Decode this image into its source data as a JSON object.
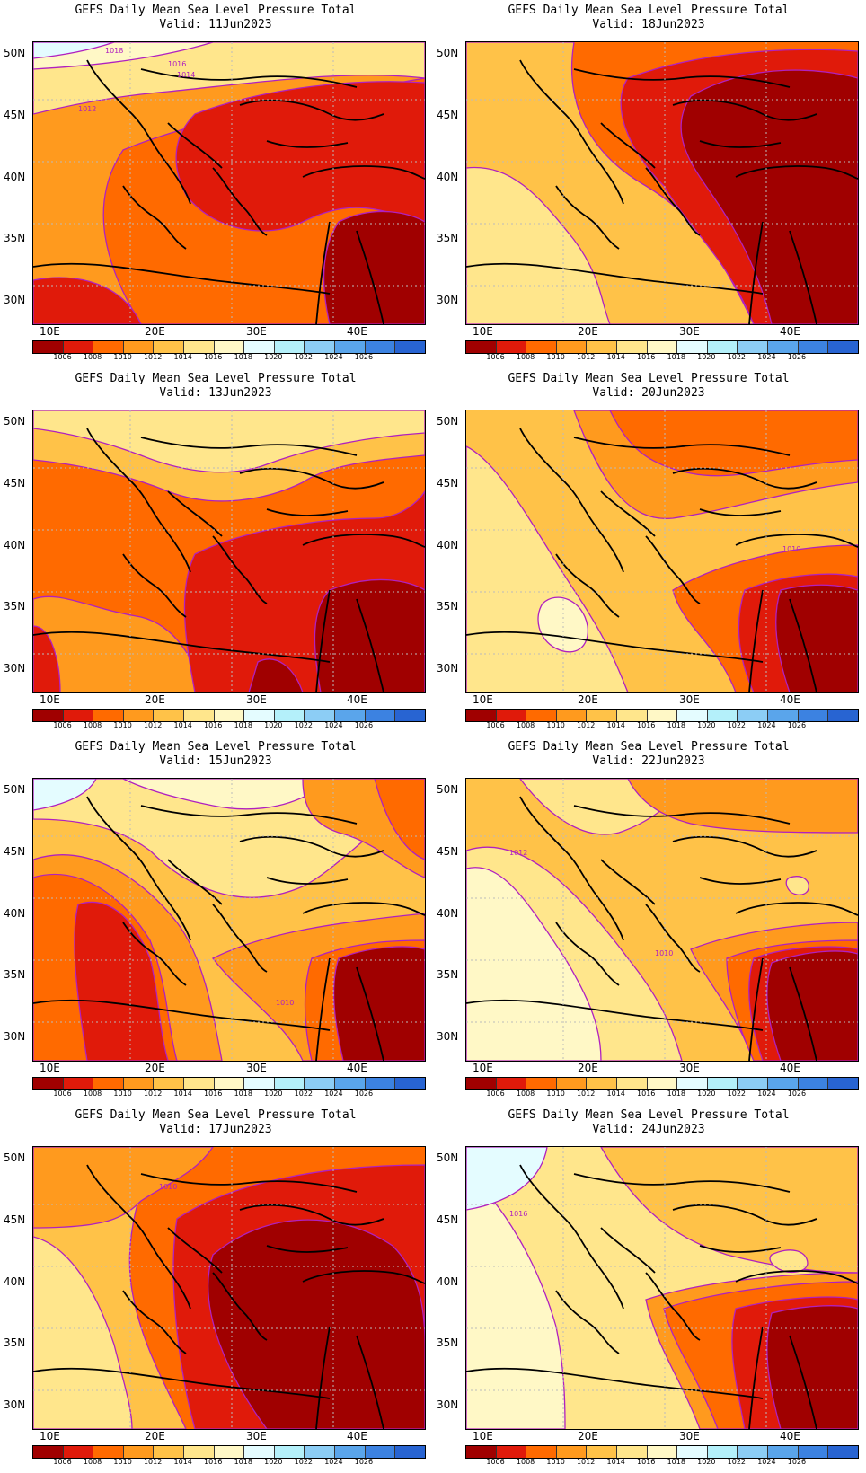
{
  "title": "GEFS Daily Mean Sea Level Pressure Total",
  "panels": [
    {
      "valid": "Valid: 11Jun2023",
      "contour_labels": [
        "1018",
        "1016",
        "1014",
        "1012"
      ]
    },
    {
      "valid": "Valid: 18Jun2023",
      "contour_labels": []
    },
    {
      "valid": "Valid: 13Jun2023",
      "contour_labels": []
    },
    {
      "valid": "Valid: 20Jun2023",
      "contour_labels": [
        "1010"
      ]
    },
    {
      "valid": "Valid: 15Jun2023",
      "contour_labels": [
        "1010"
      ]
    },
    {
      "valid": "Valid: 22Jun2023",
      "contour_labels": [
        "1012",
        "1010"
      ]
    },
    {
      "valid": "Valid: 17Jun2023",
      "contour_labels": [
        "1010"
      ]
    },
    {
      "valid": "Valid: 24Jun2023",
      "contour_labels": [
        "1016"
      ]
    }
  ],
  "lat_labels": [
    "50N",
    "45N",
    "40N",
    "35N",
    "30N"
  ],
  "lon_labels": [
    "10E",
    "20E",
    "30E",
    "40E"
  ],
  "colorbar": {
    "labels": [
      "1006",
      "1008",
      "1010",
      "1012",
      "1014",
      "1016",
      "1018",
      "1020",
      "1022",
      "1024",
      "1026"
    ],
    "colors": [
      "#a00000",
      "#e01a0a",
      "#ff6a00",
      "#ff9a1e",
      "#ffc248",
      "#ffe68c",
      "#fff8c6",
      "#e4fcff",
      "#b4f0fa",
      "#8ccdf5",
      "#5aa5eb",
      "#3c82e1",
      "#2864d2"
    ]
  }
}
